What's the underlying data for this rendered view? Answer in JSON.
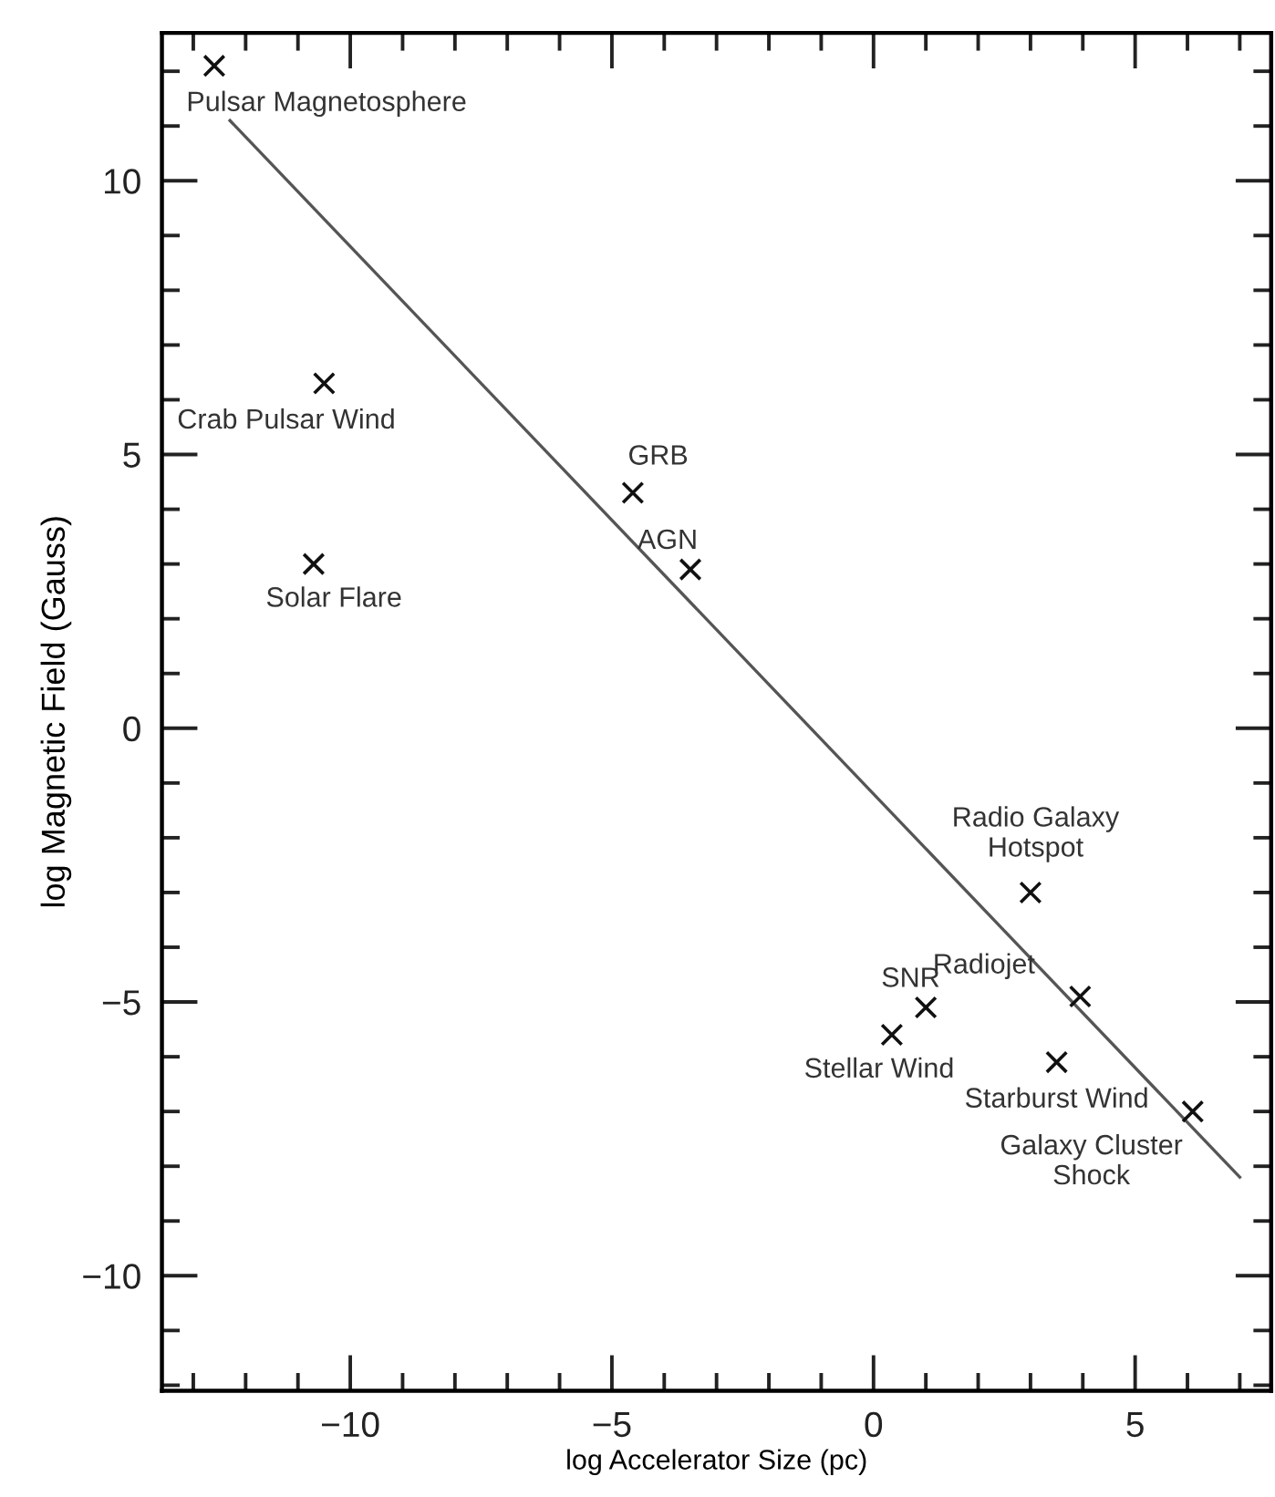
{
  "chart_data": {
    "type": "scatter",
    "xlabel": "log Accelerator Size (pc)",
    "ylabel": "log Magnetic Field (Gauss)",
    "series": [
      {
        "color": "#111111",
        "marker": "cross",
        "x": [
          -12.6,
          -10.5,
          -10.7,
          -4.6,
          -3.5,
          3.0,
          1.0,
          0.35,
          3.95,
          3.5,
          6.1
        ],
        "values": [
          12.1,
          6.3,
          3.0,
          4.3,
          2.9,
          -3.0,
          -5.1,
          -5.6,
          -4.9,
          -6.1,
          -7.0
        ]
      },
      {
        "type": "line",
        "color": "#555555",
        "line_style": "solid",
        "x": [
          -12.3,
          7.0
        ],
        "values": [
          11.1,
          -8.2
        ]
      }
    ],
    "annotations": [
      {
        "text": "Pulsar Magnetosphere",
        "x": -12.6,
        "y": 12.1
      },
      {
        "text": "Crab Pulsar Wind",
        "x": -10.5,
        "y": 6.3
      },
      {
        "text": "Solar Flare",
        "x": -10.7,
        "y": 3.0
      },
      {
        "text": "GRB",
        "x": -4.6,
        "y": 4.3
      },
      {
        "text": "AGN",
        "x": -3.5,
        "y": 2.9
      },
      {
        "text": "Radio Galaxy\nHotspot",
        "x": 3.0,
        "y": -3.0
      },
      {
        "text": "SNR",
        "x": 1.0,
        "y": -5.1
      },
      {
        "text": "Stellar Wind",
        "x": 0.35,
        "y": -5.6
      },
      {
        "text": "Radiojet",
        "x": 3.95,
        "y": -4.9
      },
      {
        "text": "Starburst Wind",
        "x": 3.5,
        "y": -6.1
      },
      {
        "text": "Galaxy Cluster\nShock",
        "x": 6.1,
        "y": -7.0
      }
    ],
    "xlim": [
      -13.6,
      7.6
    ],
    "ylim": [
      -12.1,
      12.7
    ],
    "xticks": [
      {
        "value": -13,
        "label": null
      },
      {
        "value": -12,
        "label": null
      },
      {
        "value": -11,
        "label": null
      },
      {
        "value": -10,
        "label": "−10"
      },
      {
        "value": -9,
        "label": null
      },
      {
        "value": -8,
        "label": null
      },
      {
        "value": -7,
        "label": null
      },
      {
        "value": -6,
        "label": null
      },
      {
        "value": -5,
        "label": "−5"
      },
      {
        "value": -4,
        "label": null
      },
      {
        "value": -3,
        "label": null
      },
      {
        "value": -2,
        "label": null
      },
      {
        "value": -1,
        "label": null
      },
      0,
      {
        "value": 1,
        "label": null
      },
      {
        "value": 2,
        "label": null
      },
      {
        "value": 3,
        "label": null
      },
      {
        "value": 4,
        "label": null
      },
      5,
      {
        "value": 6,
        "label": null
      },
      {
        "value": 7,
        "label": null
      }
    ],
    "yticks": [
      {
        "value": -12,
        "label": null
      },
      {
        "value": -11,
        "label": null
      },
      {
        "value": -10,
        "label": "−10"
      },
      {
        "value": -9,
        "label": null
      },
      {
        "value": -8,
        "label": null
      },
      {
        "value": -7,
        "label": null
      },
      {
        "value": -6,
        "label": null
      },
      {
        "value": -5,
        "label": "−5"
      },
      {
        "value": -4,
        "label": null
      },
      {
        "value": -3,
        "label": null
      },
      {
        "value": -2,
        "label": null
      },
      {
        "value": -1,
        "label": null
      },
      0,
      {
        "value": 1,
        "label": null
      },
      {
        "value": 2,
        "label": null
      },
      {
        "value": 3,
        "label": null
      },
      {
        "value": 4,
        "label": null
      },
      5,
      {
        "value": 6,
        "label": null
      },
      {
        "value": 7,
        "label": null
      },
      {
        "value": 8,
        "label": null
      },
      {
        "value": 9,
        "label": null
      },
      10,
      {
        "value": 11,
        "label": null
      },
      {
        "value": 12,
        "label": null
      }
    ],
    "grid": false
  }
}
